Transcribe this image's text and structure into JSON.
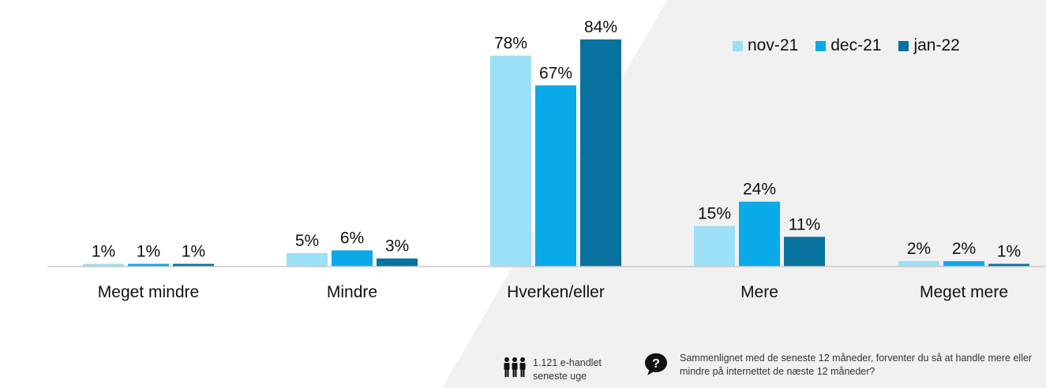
{
  "chart_data": {
    "type": "bar",
    "categories": [
      "Meget mindre",
      "Mindre",
      "Hverken/eller",
      "Mere",
      "Meget mere"
    ],
    "series": [
      {
        "name": "nov-21",
        "values": [
          1,
          5,
          78,
          15,
          2
        ],
        "labels": [
          "1%",
          "5%",
          "78%",
          "15%",
          "2%"
        ],
        "color": "#9be0f7"
      },
      {
        "name": "dec-21",
        "values": [
          1,
          6,
          67,
          24,
          2
        ],
        "labels": [
          "1%",
          "6%",
          "67%",
          "24%",
          "2%"
        ],
        "color": "#0aa9e8"
      },
      {
        "name": "jan-22",
        "values": [
          1,
          3,
          84,
          11,
          1
        ],
        "labels": [
          "1%",
          "3%",
          "84%",
          "11%",
          "1%"
        ],
        "color": "#07729f"
      }
    ],
    "ylim": [
      0,
      84
    ],
    "grid": false,
    "legend_position": "top-right"
  },
  "footer": {
    "sample_text": "1.121 e-handlet seneste uge",
    "question_text": "Sammenlignet med de seneste 12 måneder, forventer du så at handle mere eller mindre på internettet de næste 12 måneder?",
    "people_icon": "people-group-icon",
    "question_icon": "question-bubble-icon"
  },
  "colors": {
    "baseline": "#c9c9c9",
    "background_light": "#ffffff",
    "background_gray": "#f1f1f1"
  }
}
